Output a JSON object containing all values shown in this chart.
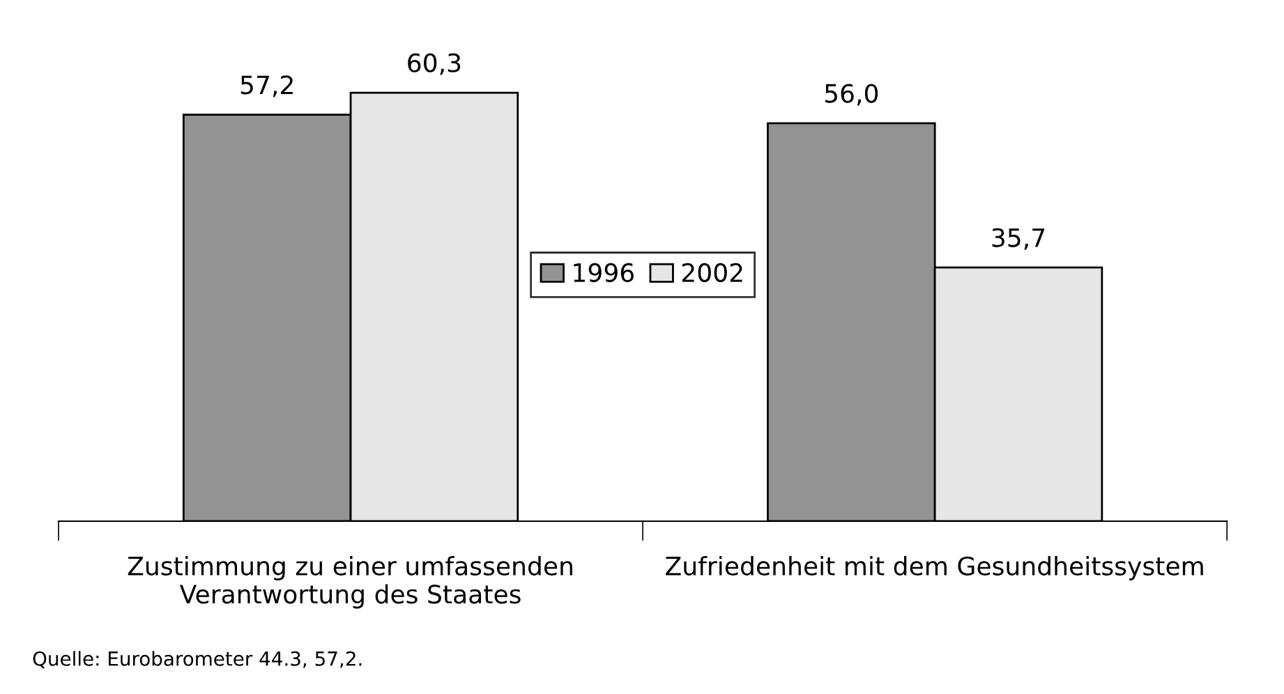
{
  "chart_data": {
    "type": "bar",
    "categories": [
      "Zustimmung zu einer umfassenden\nVerantwortung des Staates",
      "Zufriedenheit mit dem Gesundheitssystem"
    ],
    "series": [
      {
        "name": "1996",
        "color": "#939393",
        "values": [
          57.2,
          56.0
        ],
        "value_labels": [
          "57,2",
          "56,0"
        ]
      },
      {
        "name": "2002",
        "color": "#e6e6e6",
        "values": [
          60.3,
          35.7
        ],
        "value_labels": [
          "60,3",
          "35,7"
        ]
      }
    ],
    "tick_labels": "x",
    "legend": "center",
    "grid": false,
    "annotations": [
      "Quelle: Eurobarometer 44.3, 57,2."
    ]
  }
}
